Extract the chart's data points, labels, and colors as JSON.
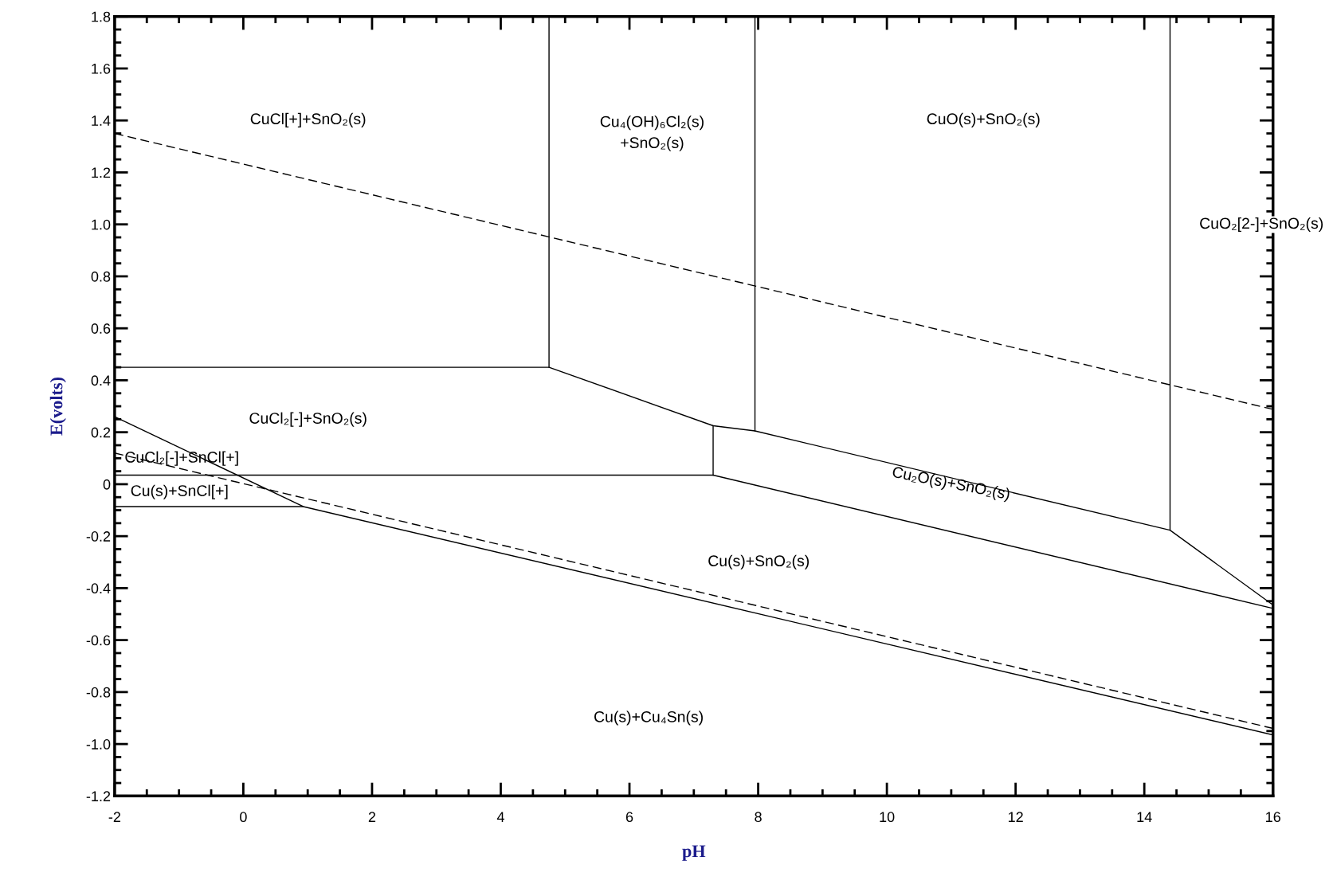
{
  "chart_data": {
    "type": "line",
    "xlabel": "pH",
    "ylabel": "E(volts)",
    "xlim": [
      -2,
      16
    ],
    "ylim": [
      -1.2,
      1.8
    ],
    "xticks": [
      -2,
      0,
      2,
      4,
      6,
      8,
      10,
      12,
      14,
      16
    ],
    "yticks": [
      {
        "value": -1.2,
        "label": "-1.2"
      },
      {
        "value": -1.0,
        "label": "-1.0"
      },
      {
        "value": -0.8,
        "label": "-0.8"
      },
      {
        "value": -0.6,
        "label": "-0.6"
      },
      {
        "value": -0.4,
        "label": "-0.4"
      },
      {
        "value": -0.2,
        "label": "-0.2"
      },
      {
        "value": 0,
        "label": "0"
      },
      {
        "value": 0.2,
        "label": "0.2"
      },
      {
        "value": 0.4,
        "label": "0.4"
      },
      {
        "value": 0.6,
        "label": "0.6"
      },
      {
        "value": 0.8,
        "label": "0.8"
      },
      {
        "value": 1.0,
        "label": "1.0"
      },
      {
        "value": 1.2,
        "label": "1.2"
      },
      {
        "value": 1.4,
        "label": "1.4"
      },
      {
        "value": 1.6,
        "label": "1.6"
      },
      {
        "value": 1.8,
        "label": "1.8"
      }
    ],
    "grid": false,
    "legend": false,
    "marker": "none",
    "series": [
      {
        "color": "#000000",
        "line_style": "dashed",
        "x": [
          -2,
          16
        ],
        "values": [
          1.35,
          0.288
        ]
      },
      {
        "color": "#000000",
        "line_style": "dashed",
        "x": [
          -2,
          16
        ],
        "values": [
          0.12,
          -0.94
        ]
      },
      {
        "color": "#000000",
        "line_style": "solid",
        "x": [
          4.75,
          4.75
        ],
        "values": [
          1.8,
          0.45
        ]
      },
      {
        "color": "#000000",
        "line_style": "solid",
        "x": [
          7.95,
          7.95
        ],
        "values": [
          1.8,
          0.205
        ]
      },
      {
        "color": "#000000",
        "line_style": "solid",
        "x": [
          14.4,
          14.4
        ],
        "values": [
          1.8,
          -0.177
        ]
      },
      {
        "color": "#000000",
        "line_style": "solid",
        "x": [
          -2,
          4.75,
          7.3,
          7.95,
          14.4,
          16
        ],
        "values": [
          0.45,
          0.45,
          0.225,
          0.205,
          -0.177,
          -0.465
        ]
      },
      {
        "color": "#000000",
        "line_style": "solid",
        "x": [
          7.3,
          7.3
        ],
        "values": [
          0.225,
          0.035
        ]
      },
      {
        "color": "#000000",
        "line_style": "solid",
        "x": [
          -2,
          7.3,
          16
        ],
        "values": [
          0.035,
          0.035,
          -0.478
        ]
      },
      {
        "color": "#000000",
        "line_style": "solid",
        "x": [
          -2,
          0.93,
          16
        ],
        "values": [
          0.26,
          -0.086,
          -0.965
        ]
      },
      {
        "color": "#000000",
        "line_style": "solid",
        "x": [
          -2,
          0.93
        ],
        "values": [
          -0.086,
          -0.086
        ]
      }
    ],
    "annotations": [
      "CuCl[+]+SnO₂(s)",
      "Cu₄(OH)₆Cl₂(s)\n+SnO₂(s)",
      "CuO(s)+SnO₂(s)",
      "CuO₂[2-]+SnO₂(s)",
      "CuCl₂[-]+SnO₂(s)",
      "CuCl₂[-]+SnCl[+]",
      "Cu(s)+SnCl[+]",
      "Cu₂O(s)+SnO₂(s)",
      "Cu(s)+SnO₂(s)",
      "Cu(s)+Cu₄Sn(s)"
    ]
  }
}
